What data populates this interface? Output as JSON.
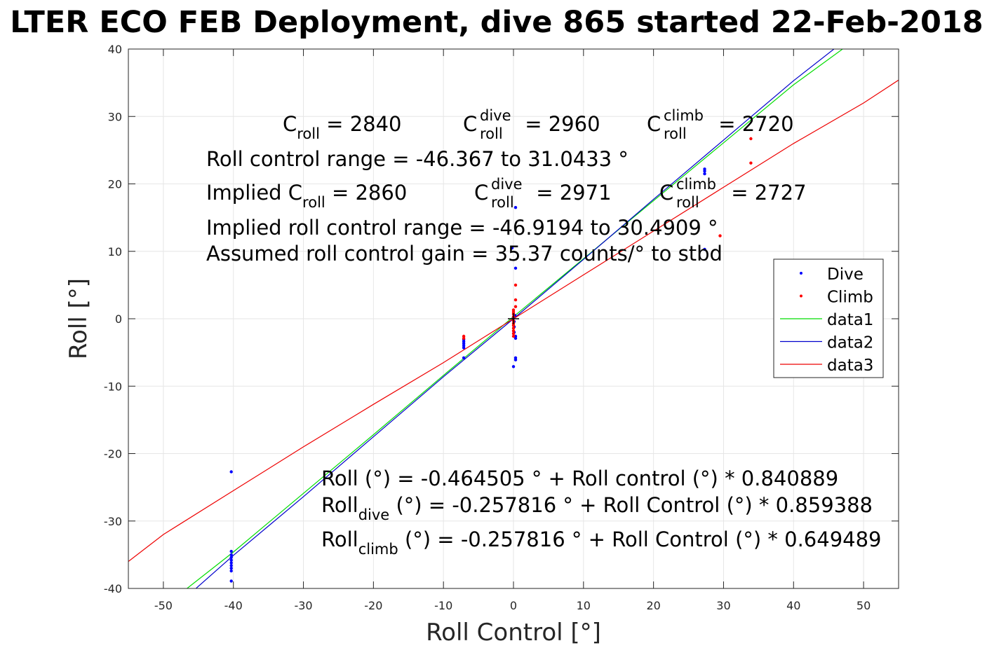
{
  "chart_data": {
    "type": "scatter",
    "title": "LTER ECO FEB Deployment, dive 865 started 22-Feb-2018",
    "xlabel": "Roll Control [°]",
    "ylabel": "Roll [°]",
    "xlim": [
      -55,
      55
    ],
    "ylim": [
      -40,
      40
    ],
    "xticks": [
      -50,
      -40,
      -30,
      -20,
      -10,
      0,
      10,
      20,
      30,
      40,
      50
    ],
    "yticks": [
      -40,
      -30,
      -20,
      -10,
      0,
      10,
      20,
      30,
      40
    ],
    "grid": true,
    "legend_position": "right",
    "legend": [
      "Dive",
      "Climb",
      "data1",
      "data2",
      "data3"
    ],
    "colors": {
      "dive": "#0000ff",
      "climb": "#ff0000",
      "data1": "#00dd00",
      "data2": "#0000cc",
      "data3": "#ee0000"
    },
    "series": [
      {
        "name": "Dive",
        "kind": "points",
        "points": [
          [
            -40.3,
            -22.7
          ],
          [
            -40.3,
            -34.5
          ],
          [
            -40.3,
            -35.0
          ],
          [
            -40.3,
            -35.4
          ],
          [
            -40.3,
            -35.8
          ],
          [
            -40.3,
            -36.2
          ],
          [
            -40.3,
            -36.6
          ],
          [
            -40.3,
            -37.0
          ],
          [
            -40.3,
            -37.4
          ],
          [
            -40.3,
            -38.9
          ],
          [
            -7.1,
            -3.1
          ],
          [
            -7.1,
            -3.4
          ],
          [
            -7.1,
            -3.7
          ],
          [
            -7.1,
            -4.0
          ],
          [
            -7.1,
            -4.3
          ],
          [
            -7.1,
            -5.8
          ],
          [
            -0.2,
            10.5
          ],
          [
            0.3,
            16.5
          ],
          [
            0.3,
            7.5
          ],
          [
            0.2,
            0.5
          ],
          [
            0.0,
            0.2
          ],
          [
            0.1,
            -0.4
          ],
          [
            0.1,
            -1.2
          ],
          [
            0.1,
            -2.0
          ],
          [
            0.3,
            -2.6
          ],
          [
            0.3,
            -2.9
          ],
          [
            0.3,
            -5.8
          ],
          [
            0.3,
            -6.1
          ],
          [
            0.0,
            -7.1
          ],
          [
            27.3,
            22.2
          ],
          [
            27.3,
            21.9
          ],
          [
            27.3,
            21.5
          ],
          [
            27.3,
            10.3
          ]
        ]
      },
      {
        "name": "Climb",
        "kind": "points",
        "points": [
          [
            -7.1,
            -2.6
          ],
          [
            -7.1,
            -2.9
          ],
          [
            0.3,
            5.0
          ],
          [
            0.3,
            2.8
          ],
          [
            0.3,
            1.8
          ],
          [
            0.0,
            1.3
          ],
          [
            0.0,
            1.0
          ],
          [
            0.0,
            0.7
          ],
          [
            0.0,
            0.3
          ],
          [
            0.0,
            -0.3
          ],
          [
            0.0,
            -0.7
          ],
          [
            0.0,
            -1.0
          ],
          [
            0.0,
            -1.4
          ],
          [
            0.0,
            -1.8
          ],
          [
            0.0,
            -2.2
          ],
          [
            0.0,
            -2.6
          ],
          [
            29.5,
            12.3
          ],
          [
            33.9,
            26.7
          ],
          [
            33.9,
            23.1
          ]
        ]
      },
      {
        "name": "data1",
        "kind": "line",
        "x": [
          -47,
          -40,
          -30,
          -20,
          -10,
          0,
          10,
          20,
          30,
          40,
          47.8
        ],
        "y": [
          -40.3,
          -34.6,
          -25.9,
          -17.2,
          -8.4,
          0.3,
          8.9,
          17.5,
          26.1,
          34.7,
          40.6
        ]
      },
      {
        "name": "data2",
        "kind": "line",
        "x": [
          -46,
          -40,
          -30,
          -20,
          -10,
          0,
          10,
          20,
          30,
          40,
          47
        ],
        "y": [
          -40.6,
          -35.1,
          -26.4,
          -17.5,
          -8.6,
          0.0,
          8.8,
          17.7,
          26.5,
          35.3,
          41.0
        ]
      },
      {
        "name": "data3",
        "kind": "line",
        "x": [
          -55,
          -50,
          -40,
          -30,
          -20,
          -10,
          0,
          10,
          20,
          30,
          40,
          50,
          55
        ],
        "y": [
          -36.0,
          -32.0,
          -25.5,
          -19.0,
          -12.7,
          -6.5,
          0.0,
          6.5,
          13.0,
          19.5,
          26.0,
          32.0,
          35.4
        ]
      }
    ]
  },
  "annotations_top": {
    "c_roll": {
      "base": "C",
      "sub": "roll",
      "rest": " = 2840"
    },
    "c_roll_dive": {
      "base": "C",
      "sup": "dive",
      "sub": "roll",
      "rest": " = 2960"
    },
    "c_roll_climb": {
      "base": "C",
      "sup": "climb",
      "sub": "roll",
      "rest": " = 2720"
    },
    "range": "Roll control range = -46.367 to 31.0433 °",
    "implied_c_roll": {
      "base": "Implied C",
      "sub": "roll",
      "rest": " = 2860"
    },
    "implied_c_dive": {
      "base": "C",
      "sup": "dive",
      "sub": "roll",
      "rest": " = 2971"
    },
    "implied_c_climb": {
      "base": "C",
      "sup": "climb",
      "sub": "roll",
      "rest": " = 2727"
    },
    "implied_range": "Implied roll control range = -46.9194 to 30.4909 °",
    "gain": "Assumed roll control gain = 35.37 counts/° to stbd"
  },
  "annotations_bottom": {
    "fit_all": "Roll (°) = -0.464505 ° + Roll control (°) * 0.840889",
    "fit_dive": {
      "base": "Roll",
      "sub": "dive",
      "rest": " (°) = -0.257816 ° + Roll Control (°) * 0.859388"
    },
    "fit_climb": {
      "base": "Roll",
      "sub": "climb",
      "rest": " (°) = -0.257816 ° + Roll Control (°) * 0.649489"
    }
  }
}
